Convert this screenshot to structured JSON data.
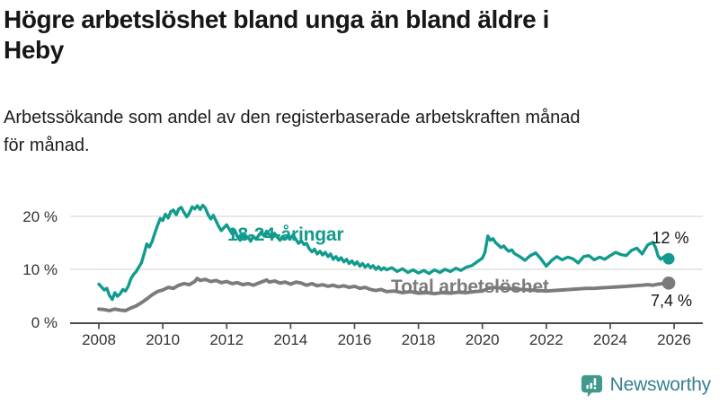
{
  "header": {
    "title_lines": [
      "Högre arbetslöshet bland unga än bland äldre i",
      "Heby"
    ],
    "subtitle_lines": [
      "Arbetssökande som andel av den registerbaserade arbetskraften månad",
      "för månad."
    ]
  },
  "chart_data": {
    "type": "line",
    "title": "Högre arbetslöshet bland unga än bland äldre i Heby",
    "xlabel": "",
    "ylabel": "Arbetssökande som andel av den registerbaserade arbetskraften",
    "grid": "horizontal",
    "legend_position": "inline-labels",
    "xlim": [
      2007.1,
      2026.9
    ],
    "ylim": [
      0,
      23
    ],
    "x_ticks": [
      2008,
      2010,
      2012,
      2014,
      2016,
      2018,
      2020,
      2022,
      2024,
      2026
    ],
    "y_ticks": [
      {
        "value": 0,
        "label": "0 %"
      },
      {
        "value": 10,
        "label": "10 %"
      },
      {
        "value": 20,
        "label": "20 %"
      }
    ],
    "colors": {
      "youth": "#119b8d",
      "total": "#7b7b7b",
      "grid": "#d9d9d9",
      "axis": "#4b4b4b"
    },
    "series": [
      {
        "name": "18-24-åringar",
        "color": "#119b8d",
        "end_label": "12 %",
        "end_value": 12,
        "points": [
          [
            2008.0,
            7.2
          ],
          [
            2008.08,
            6.7
          ],
          [
            2008.17,
            6.1
          ],
          [
            2008.25,
            6.4
          ],
          [
            2008.33,
            5.1
          ],
          [
            2008.42,
            4.3
          ],
          [
            2008.5,
            5.6
          ],
          [
            2008.58,
            4.9
          ],
          [
            2008.67,
            5.4
          ],
          [
            2008.75,
            6.2
          ],
          [
            2008.83,
            5.9
          ],
          [
            2008.92,
            6.8
          ],
          [
            2009.0,
            8.2
          ],
          [
            2009.08,
            9.0
          ],
          [
            2009.17,
            9.6
          ],
          [
            2009.25,
            10.4
          ],
          [
            2009.33,
            11.2
          ],
          [
            2009.42,
            13.0
          ],
          [
            2009.5,
            14.8
          ],
          [
            2009.58,
            14.2
          ],
          [
            2009.67,
            15.3
          ],
          [
            2009.75,
            16.8
          ],
          [
            2009.83,
            18.2
          ],
          [
            2009.92,
            19.6
          ],
          [
            2010.0,
            19.2
          ],
          [
            2010.08,
            20.4
          ],
          [
            2010.17,
            19.7
          ],
          [
            2010.25,
            20.9
          ],
          [
            2010.33,
            21.2
          ],
          [
            2010.42,
            20.3
          ],
          [
            2010.5,
            21.4
          ],
          [
            2010.58,
            21.7
          ],
          [
            2010.67,
            20.7
          ],
          [
            2010.75,
            19.9
          ],
          [
            2010.83,
            20.6
          ],
          [
            2010.92,
            21.8
          ],
          [
            2011.0,
            21.4
          ],
          [
            2011.08,
            22.0
          ],
          [
            2011.17,
            21.3
          ],
          [
            2011.25,
            22.1
          ],
          [
            2011.33,
            21.6
          ],
          [
            2011.42,
            20.3
          ],
          [
            2011.5,
            19.5
          ],
          [
            2011.58,
            20.2
          ],
          [
            2011.67,
            19.1
          ],
          [
            2011.75,
            18.1
          ],
          [
            2011.83,
            17.3
          ],
          [
            2011.92,
            17.9
          ],
          [
            2012.0,
            18.4
          ],
          [
            2012.08,
            17.6
          ],
          [
            2012.17,
            16.7
          ],
          [
            2012.25,
            17.4
          ],
          [
            2012.33,
            16.2
          ],
          [
            2012.42,
            15.5
          ],
          [
            2012.5,
            16.4
          ],
          [
            2012.58,
            15.7
          ],
          [
            2012.67,
            16.1
          ],
          [
            2012.75,
            15.3
          ],
          [
            2012.83,
            16.2
          ],
          [
            2012.92,
            15.7
          ],
          [
            2013.0,
            16.4
          ],
          [
            2013.08,
            17.0
          ],
          [
            2013.17,
            16.3
          ],
          [
            2013.25,
            17.2
          ],
          [
            2013.33,
            16.6
          ],
          [
            2013.42,
            15.9
          ],
          [
            2013.5,
            16.8
          ],
          [
            2013.58,
            16.1
          ],
          [
            2013.67,
            15.5
          ],
          [
            2013.75,
            16.2
          ],
          [
            2013.83,
            15.7
          ],
          [
            2013.92,
            16.4
          ],
          [
            2014.0,
            15.9
          ],
          [
            2014.08,
            16.5
          ],
          [
            2014.17,
            15.6
          ],
          [
            2014.25,
            14.9
          ],
          [
            2014.33,
            15.4
          ],
          [
            2014.42,
            14.7
          ],
          [
            2014.5,
            14.9
          ],
          [
            2014.58,
            13.9
          ],
          [
            2014.67,
            13.3
          ],
          [
            2014.75,
            13.8
          ],
          [
            2014.83,
            12.9
          ],
          [
            2014.92,
            13.4
          ],
          [
            2015.0,
            12.7
          ],
          [
            2015.08,
            13.2
          ],
          [
            2015.17,
            12.4
          ],
          [
            2015.25,
            12.9
          ],
          [
            2015.33,
            11.9
          ],
          [
            2015.42,
            12.4
          ],
          [
            2015.5,
            11.7
          ],
          [
            2015.58,
            12.2
          ],
          [
            2015.67,
            11.4
          ],
          [
            2015.75,
            11.9
          ],
          [
            2015.83,
            11.1
          ],
          [
            2015.92,
            11.6
          ],
          [
            2016.0,
            10.9
          ],
          [
            2016.08,
            11.4
          ],
          [
            2016.17,
            10.6
          ],
          [
            2016.25,
            11.1
          ],
          [
            2016.33,
            10.4
          ],
          [
            2016.42,
            10.9
          ],
          [
            2016.5,
            10.3
          ],
          [
            2016.58,
            10.7
          ],
          [
            2016.67,
            10.0
          ],
          [
            2016.75,
            10.5
          ],
          [
            2016.83,
            9.9
          ],
          [
            2016.92,
            10.3
          ],
          [
            2017.0,
            9.9
          ],
          [
            2017.17,
            10.3
          ],
          [
            2017.33,
            9.6
          ],
          [
            2017.5,
            10.1
          ],
          [
            2017.67,
            9.4
          ],
          [
            2017.83,
            9.9
          ],
          [
            2018.0,
            9.3
          ],
          [
            2018.17,
            9.8
          ],
          [
            2018.33,
            9.2
          ],
          [
            2018.5,
            9.9
          ],
          [
            2018.67,
            9.4
          ],
          [
            2018.83,
            10.0
          ],
          [
            2019.0,
            9.6
          ],
          [
            2019.17,
            10.2
          ],
          [
            2019.33,
            9.8
          ],
          [
            2019.5,
            10.4
          ],
          [
            2019.67,
            10.7
          ],
          [
            2019.83,
            11.4
          ],
          [
            2020.0,
            12.1
          ],
          [
            2020.08,
            13.2
          ],
          [
            2020.17,
            16.3
          ],
          [
            2020.25,
            15.5
          ],
          [
            2020.33,
            15.8
          ],
          [
            2020.42,
            15.0
          ],
          [
            2020.5,
            14.6
          ],
          [
            2020.58,
            14.1
          ],
          [
            2020.67,
            14.4
          ],
          [
            2020.75,
            13.8
          ],
          [
            2020.83,
            13.4
          ],
          [
            2020.92,
            13.7
          ],
          [
            2021.0,
            13.0
          ],
          [
            2021.17,
            12.4
          ],
          [
            2021.33,
            11.7
          ],
          [
            2021.5,
            12.6
          ],
          [
            2021.67,
            13.1
          ],
          [
            2021.83,
            12.0
          ],
          [
            2022.0,
            10.6
          ],
          [
            2022.17,
            11.7
          ],
          [
            2022.33,
            12.4
          ],
          [
            2022.5,
            11.8
          ],
          [
            2022.67,
            12.3
          ],
          [
            2022.83,
            12.0
          ],
          [
            2023.0,
            11.2
          ],
          [
            2023.17,
            12.4
          ],
          [
            2023.33,
            12.6
          ],
          [
            2023.5,
            11.8
          ],
          [
            2023.67,
            12.3
          ],
          [
            2023.83,
            11.9
          ],
          [
            2024.0,
            12.6
          ],
          [
            2024.17,
            13.2
          ],
          [
            2024.33,
            12.8
          ],
          [
            2024.5,
            12.6
          ],
          [
            2024.67,
            13.6
          ],
          [
            2024.83,
            14.0
          ],
          [
            2025.0,
            12.9
          ],
          [
            2025.17,
            14.6
          ],
          [
            2025.33,
            15.1
          ],
          [
            2025.42,
            14.1
          ],
          [
            2025.5,
            12.5
          ],
          [
            2025.58,
            11.9
          ],
          [
            2025.67,
            12.3
          ],
          [
            2025.75,
            12.6
          ],
          [
            2025.83,
            12.0
          ]
        ]
      },
      {
        "name": "Total arbetslöshet",
        "color": "#7b7b7b",
        "end_label": "7,4 %",
        "end_value": 7.4,
        "points": [
          [
            2008.0,
            2.5
          ],
          [
            2008.17,
            2.4
          ],
          [
            2008.33,
            2.2
          ],
          [
            2008.5,
            2.5
          ],
          [
            2008.67,
            2.3
          ],
          [
            2008.83,
            2.2
          ],
          [
            2009.0,
            2.7
          ],
          [
            2009.17,
            3.1
          ],
          [
            2009.33,
            3.7
          ],
          [
            2009.5,
            4.4
          ],
          [
            2009.67,
            5.2
          ],
          [
            2009.83,
            5.8
          ],
          [
            2010.0,
            6.1
          ],
          [
            2010.17,
            6.6
          ],
          [
            2010.33,
            6.4
          ],
          [
            2010.5,
            7.0
          ],
          [
            2010.67,
            7.3
          ],
          [
            2010.83,
            7.1
          ],
          [
            2011.0,
            7.7
          ],
          [
            2011.08,
            8.3
          ],
          [
            2011.17,
            7.9
          ],
          [
            2011.33,
            8.1
          ],
          [
            2011.5,
            7.7
          ],
          [
            2011.67,
            7.9
          ],
          [
            2011.83,
            7.5
          ],
          [
            2012.0,
            7.7
          ],
          [
            2012.17,
            7.3
          ],
          [
            2012.33,
            7.5
          ],
          [
            2012.5,
            7.1
          ],
          [
            2012.67,
            7.3
          ],
          [
            2012.83,
            7.0
          ],
          [
            2013.0,
            7.4
          ],
          [
            2013.17,
            7.8
          ],
          [
            2013.25,
            8.0
          ],
          [
            2013.33,
            7.6
          ],
          [
            2013.5,
            7.8
          ],
          [
            2013.67,
            7.4
          ],
          [
            2013.83,
            7.6
          ],
          [
            2014.0,
            7.2
          ],
          [
            2014.17,
            7.6
          ],
          [
            2014.33,
            7.4
          ],
          [
            2014.5,
            7.0
          ],
          [
            2014.67,
            7.3
          ],
          [
            2014.83,
            6.9
          ],
          [
            2015.0,
            7.1
          ],
          [
            2015.17,
            6.8
          ],
          [
            2015.33,
            7.0
          ],
          [
            2015.5,
            6.7
          ],
          [
            2015.67,
            6.9
          ],
          [
            2015.83,
            6.6
          ],
          [
            2016.0,
            6.8
          ],
          [
            2016.17,
            6.4
          ],
          [
            2016.33,
            6.6
          ],
          [
            2016.5,
            6.2
          ],
          [
            2016.67,
            6.0
          ],
          [
            2016.83,
            6.2
          ],
          [
            2017.0,
            5.8
          ],
          [
            2017.25,
            5.9
          ],
          [
            2017.5,
            5.6
          ],
          [
            2017.75,
            5.8
          ],
          [
            2018.0,
            5.5
          ],
          [
            2018.25,
            5.6
          ],
          [
            2018.5,
            5.4
          ],
          [
            2018.75,
            5.6
          ],
          [
            2019.0,
            5.5
          ],
          [
            2019.25,
            5.7
          ],
          [
            2019.5,
            5.6
          ],
          [
            2019.75,
            5.8
          ],
          [
            2020.0,
            5.9
          ],
          [
            2020.17,
            6.4
          ],
          [
            2020.33,
            6.6
          ],
          [
            2020.5,
            6.5
          ],
          [
            2020.75,
            6.4
          ],
          [
            2021.0,
            6.3
          ],
          [
            2021.25,
            6.2
          ],
          [
            2021.5,
            6.1
          ],
          [
            2021.75,
            6.0
          ],
          [
            2022.0,
            5.9
          ],
          [
            2022.25,
            6.0
          ],
          [
            2022.5,
            6.1
          ],
          [
            2022.75,
            6.2
          ],
          [
            2023.0,
            6.3
          ],
          [
            2023.25,
            6.4
          ],
          [
            2023.5,
            6.4
          ],
          [
            2023.75,
            6.5
          ],
          [
            2024.0,
            6.6
          ],
          [
            2024.25,
            6.7
          ],
          [
            2024.5,
            6.8
          ],
          [
            2024.75,
            6.9
          ],
          [
            2025.0,
            7.0
          ],
          [
            2025.17,
            7.1
          ],
          [
            2025.33,
            7.0
          ],
          [
            2025.5,
            7.2
          ],
          [
            2025.67,
            7.3
          ],
          [
            2025.83,
            7.4
          ]
        ]
      }
    ]
  },
  "footer": {
    "brand": "Newsworthy",
    "brand_text_color": "#37808f",
    "brand_icon": "newsworthy-chart-bubble-icon",
    "brand_icon_color": "#3f9a8d"
  }
}
